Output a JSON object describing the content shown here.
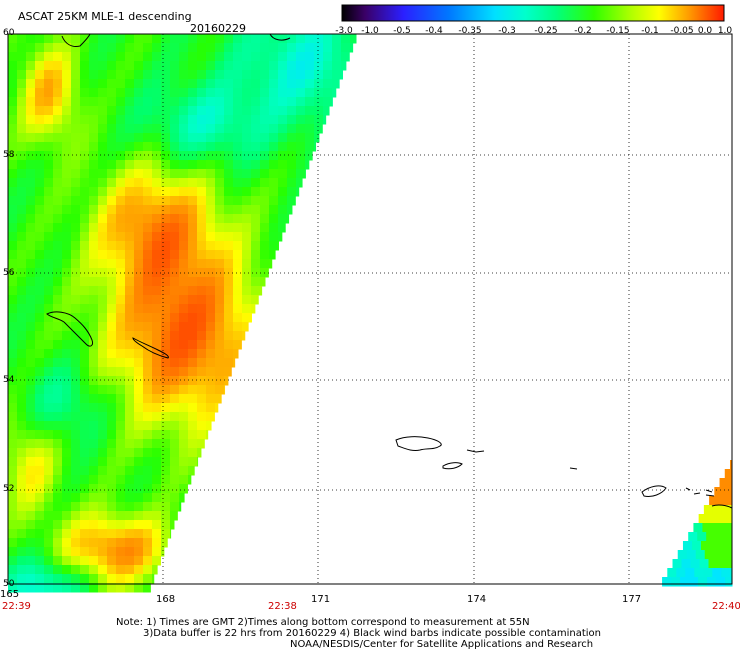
{
  "header": {
    "title": "ASCAT 25KM MLE-1 descending",
    "date": "20160229"
  },
  "colorbar": {
    "labels": [
      "-3.0",
      "-1.0",
      "-0.5",
      "-0.4",
      "-0.35",
      "-0.3",
      "-0.25",
      "-0.2",
      "-0.15",
      "-0.1",
      "-0.05",
      "0.0",
      "1.0"
    ],
    "colors": [
      "#000000",
      "#4b0082",
      "#0000ff",
      "#0055ff",
      "#00aaff",
      "#00ffff",
      "#00ffaa",
      "#00ff55",
      "#00ff00",
      "#aaff00",
      "#ffff00",
      "#ffaa00",
      "#ff0000"
    ]
  },
  "map": {
    "lon_labels": [
      "165",
      "168",
      "171",
      "174",
      "177"
    ],
    "lat_labels": [
      "60",
      "58",
      "56",
      "54",
      "52",
      "50"
    ],
    "time_left": "22:39",
    "time_mid": "22:38",
    "time_right": "22:40"
  },
  "footer": {
    "note1": "Note: 1) Times are GMT 2)Times along bottom correspond to measurement at 55N",
    "note2": "3)Data buffer is 22 hrs from 20160229 4) Black wind barbs indicate possible contamination",
    "credit": "NOAA/NESDIS/Center for Satellite Applications and Research"
  }
}
